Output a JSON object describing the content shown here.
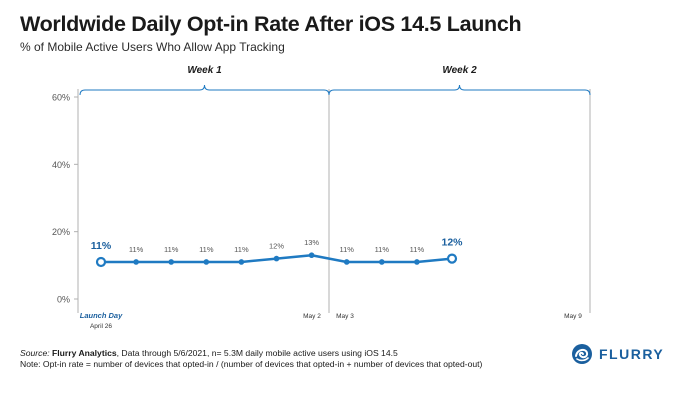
{
  "header": {
    "title": "Worldwide Daily Opt-in Rate After iOS 14.5 Launch",
    "subtitle": "% of Mobile Active Users Who Allow App Tracking"
  },
  "footer": {
    "source_label": "Source:",
    "source_name": "Flurry Analytics",
    "source_text": ", Data through 5/6/2021, n= 5.3M daily mobile active users using iOS 14.5",
    "note": "Note: Opt-in rate = number of devices that opted-in / (number of devices that opted-in + number of devices that opted-out)"
  },
  "logo": {
    "text": "FLURRY",
    "icon": "flurry-swirl-icon"
  },
  "colors": {
    "line": "#1f7ac2",
    "accent_text": "#1a5f9e",
    "bracket": "#1f7ac2",
    "axis": "#b0b0b0"
  },
  "chart_data": {
    "type": "line",
    "title": "Worldwide Daily Opt-in Rate After iOS 14.5 Launch",
    "subtitle": "% of Mobile Active Users Who Allow App Tracking",
    "ylim": [
      0,
      60
    ],
    "yticks": [
      0,
      20,
      40,
      60
    ],
    "ytick_labels": [
      "0%",
      "20%",
      "40%",
      "60%"
    ],
    "x": [
      "2021-04-26",
      "2021-04-27",
      "2021-04-28",
      "2021-04-29",
      "2021-04-30",
      "2021-05-01",
      "2021-05-02",
      "2021-05-03",
      "2021-05-04",
      "2021-05-05",
      "2021-05-06"
    ],
    "xlim": [
      "2021-04-26",
      "2021-05-09"
    ],
    "values": [
      11,
      11,
      11,
      11,
      11,
      12,
      13,
      11,
      11,
      11,
      12
    ],
    "data_labels": [
      "11%",
      "11%",
      "11%",
      "11%",
      "11%",
      "12%",
      "13%",
      "11%",
      "11%",
      "11%",
      "12%"
    ],
    "highlighted_points": [
      0,
      10
    ],
    "x_annotations": [
      {
        "date": "2021-04-26",
        "label": "Launch Day",
        "style": "bold-italic-blue"
      },
      {
        "date": "2021-04-26",
        "label": "April 26"
      },
      {
        "date": "2021-05-02",
        "label": "May 2"
      },
      {
        "date": "2021-05-03",
        "label": "May 3"
      },
      {
        "date": "2021-05-09",
        "label": "May 9"
      }
    ],
    "groups": [
      {
        "label": "Week 1",
        "start": "2021-04-26",
        "end": "2021-05-02"
      },
      {
        "label": "Week 2",
        "start": "2021-05-03",
        "end": "2021-05-09"
      }
    ]
  }
}
